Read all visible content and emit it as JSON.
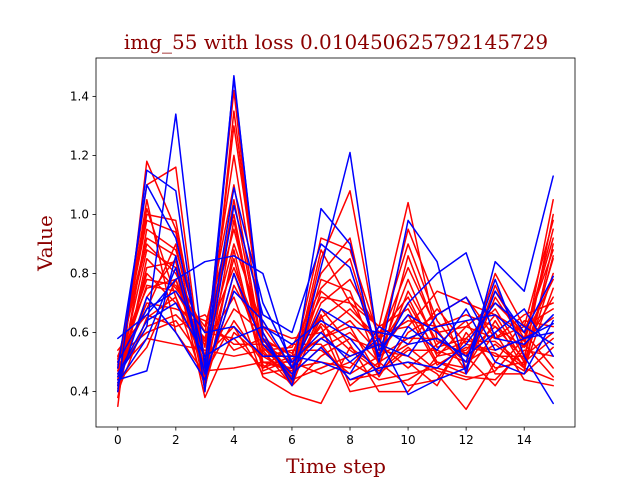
{
  "chart_data": {
    "type": "line",
    "title": "img_55 with loss 0.010450625792145729",
    "xlabel": "Time step",
    "ylabel": "Value",
    "xlim": [
      -0.75,
      15.75
    ],
    "ylim": [
      0.28,
      1.53
    ],
    "xticks": [
      0,
      2,
      4,
      6,
      8,
      10,
      12,
      14
    ],
    "xtick_labels": [
      "0",
      "2",
      "4",
      "6",
      "8",
      "10",
      "12",
      "14"
    ],
    "yticks": [
      0.4,
      0.6,
      0.8,
      1.0,
      1.2,
      1.4
    ],
    "ytick_labels": [
      "0.4",
      "0.6",
      "0.8",
      "1.0",
      "1.2",
      "1.4"
    ],
    "grid": false,
    "legend": "none",
    "x": [
      0,
      1,
      2,
      3,
      4,
      5,
      6,
      7,
      8,
      9,
      10,
      11,
      12,
      13,
      14,
      15
    ],
    "colors": {
      "red_series": "#ff0000",
      "blue_series": "#0000ff",
      "text": "#8b0000"
    },
    "series": [
      {
        "color": "red",
        "values": [
          0.35,
          1.18,
          0.95,
          0.5,
          1.42,
          0.55,
          0.45,
          0.88,
          0.7,
          0.62,
          1.04,
          0.58,
          0.5,
          0.8,
          0.62,
          0.98
        ]
      },
      {
        "color": "red",
        "values": [
          0.42,
          1.1,
          1.16,
          0.4,
          1.35,
          0.6,
          0.43,
          0.85,
          1.08,
          0.55,
          0.95,
          0.7,
          0.48,
          0.76,
          0.55,
          1.05
        ]
      },
      {
        "color": "red",
        "values": [
          0.48,
          1.0,
          0.98,
          0.45,
          1.3,
          0.62,
          0.48,
          0.92,
          0.88,
          0.58,
          0.9,
          0.64,
          0.52,
          0.74,
          0.58,
          0.92
        ]
      },
      {
        "color": "red",
        "values": [
          0.4,
          0.95,
          0.88,
          0.55,
          1.2,
          0.58,
          0.52,
          0.8,
          0.92,
          0.48,
          0.86,
          0.6,
          0.62,
          0.7,
          0.6,
          0.88
        ]
      },
      {
        "color": "red",
        "values": [
          0.5,
          0.9,
          0.8,
          0.6,
          1.1,
          0.54,
          0.55,
          0.75,
          0.85,
          0.52,
          0.78,
          0.55,
          0.58,
          0.68,
          0.52,
          0.85
        ]
      },
      {
        "color": "red",
        "values": [
          0.38,
          0.85,
          0.75,
          0.62,
          1.0,
          0.5,
          0.47,
          0.7,
          0.78,
          0.6,
          0.72,
          0.52,
          0.54,
          0.66,
          0.5,
          0.8
        ]
      },
      {
        "color": "red",
        "values": [
          0.45,
          0.8,
          0.7,
          0.58,
          0.95,
          0.56,
          0.44,
          0.65,
          0.72,
          0.62,
          0.68,
          0.5,
          0.48,
          0.64,
          0.48,
          0.75
        ]
      },
      {
        "color": "red",
        "values": [
          0.52,
          0.75,
          0.78,
          0.52,
          0.9,
          0.62,
          0.58,
          0.6,
          0.68,
          0.58,
          0.64,
          0.62,
          0.66,
          0.62,
          0.55,
          0.72
        ]
      },
      {
        "color": "red",
        "values": [
          0.44,
          0.72,
          0.85,
          0.48,
          0.85,
          0.48,
          0.52,
          0.58,
          0.62,
          0.45,
          0.6,
          0.66,
          0.72,
          0.58,
          0.62,
          0.68
        ]
      },
      {
        "color": "red",
        "values": [
          0.48,
          0.68,
          0.9,
          0.44,
          0.8,
          0.52,
          0.46,
          0.55,
          0.6,
          0.5,
          0.56,
          0.68,
          0.56,
          0.54,
          0.58,
          0.65
        ]
      },
      {
        "color": "red",
        "values": [
          0.4,
          0.65,
          0.72,
          0.42,
          0.76,
          0.58,
          0.42,
          0.52,
          0.58,
          0.54,
          0.52,
          0.46,
          0.34,
          0.5,
          0.64,
          0.62
        ]
      },
      {
        "color": "red",
        "values": [
          0.46,
          0.62,
          0.66,
          0.56,
          0.72,
          0.45,
          0.39,
          0.36,
          0.55,
          0.48,
          0.5,
          0.42,
          0.6,
          0.48,
          0.5,
          0.58
        ]
      },
      {
        "color": "red",
        "values": [
          0.52,
          0.6,
          0.64,
          0.5,
          0.68,
          0.6,
          0.44,
          0.48,
          0.52,
          0.56,
          0.48,
          0.56,
          0.64,
          0.46,
          0.46,
          0.55
        ]
      },
      {
        "color": "red",
        "values": [
          0.42,
          1.05,
          0.6,
          0.46,
          0.64,
          0.5,
          0.5,
          0.46,
          0.5,
          0.44,
          0.46,
          0.48,
          0.45,
          0.44,
          0.54,
          0.52
        ]
      },
      {
        "color": "red",
        "values": [
          0.48,
          0.98,
          0.94,
          0.52,
          0.62,
          0.46,
          0.48,
          0.5,
          0.48,
          0.6,
          0.62,
          0.74,
          0.7,
          0.66,
          0.6,
          0.48
        ]
      },
      {
        "color": "red",
        "values": [
          0.44,
          0.88,
          0.82,
          0.38,
          0.6,
          0.52,
          0.54,
          0.54,
          0.46,
          0.52,
          0.58,
          0.58,
          0.52,
          0.42,
          0.56,
          0.45
        ]
      },
      {
        "color": "red",
        "values": [
          0.5,
          0.78,
          0.76,
          0.6,
          0.58,
          0.48,
          0.56,
          0.56,
          0.44,
          0.46,
          0.54,
          0.54,
          0.5,
          0.56,
          0.48,
          0.44
        ]
      },
      {
        "color": "red",
        "values": [
          0.46,
          0.7,
          0.68,
          0.64,
          0.56,
          0.56,
          0.5,
          0.62,
          0.4,
          0.42,
          0.44,
          0.5,
          0.46,
          0.6,
          0.44,
          0.42
        ]
      },
      {
        "color": "red",
        "values": [
          0.54,
          0.66,
          0.62,
          0.66,
          0.54,
          0.58,
          0.46,
          0.66,
          0.42,
          0.5,
          0.42,
          0.44,
          0.58,
          0.52,
          0.52,
          0.6
        ]
      },
      {
        "color": "red",
        "values": [
          0.47,
          0.58,
          0.56,
          0.54,
          0.52,
          0.54,
          0.42,
          0.68,
          0.56,
          0.4,
          0.4,
          0.52,
          0.62,
          0.58,
          0.66,
          0.7
        ]
      },
      {
        "color": "red",
        "values": [
          0.43,
          0.55,
          0.78,
          0.47,
          0.48,
          0.5,
          0.48,
          0.63,
          0.54,
          0.47,
          0.55,
          0.47,
          0.44,
          0.47,
          0.58,
          0.78
        ]
      },
      {
        "color": "red",
        "values": [
          0.51,
          0.92,
          0.86,
          0.41,
          0.88,
          0.47,
          0.51,
          0.58,
          0.64,
          0.53,
          0.66,
          0.49,
          0.55,
          0.53,
          0.47,
          0.9
        ]
      },
      {
        "color": "red",
        "values": [
          0.49,
          1.02,
          0.72,
          0.49,
          1.05,
          0.53,
          0.45,
          0.74,
          0.66,
          0.57,
          0.82,
          0.61,
          0.47,
          0.72,
          0.57,
          0.95
        ]
      },
      {
        "color": "red",
        "values": [
          0.41,
          0.82,
          0.84,
          0.43,
          0.98,
          0.49,
          0.43,
          0.78,
          0.74,
          0.49,
          0.74,
          0.57,
          0.53,
          0.62,
          0.51,
          1.0
        ]
      },
      {
        "color": "red",
        "values": [
          0.47,
          0.76,
          0.74,
          0.57,
          0.82,
          0.57,
          0.53,
          0.72,
          0.7,
          0.55,
          0.7,
          0.53,
          0.57,
          0.57,
          0.49,
          0.86
        ]
      },
      {
        "color": "blue",
        "values": [
          0.4,
          1.15,
          1.08,
          0.4,
          1.47,
          0.58,
          0.44,
          1.02,
          0.9,
          0.5,
          0.98,
          0.84,
          0.46,
          0.84,
          0.74,
          1.13
        ]
      },
      {
        "color": "blue",
        "values": [
          0.45,
          0.62,
          1.34,
          0.48,
          1.46,
          0.6,
          0.42,
          0.82,
          1.21,
          0.54,
          0.66,
          0.6,
          0.5,
          0.78,
          0.52,
          0.36
        ]
      },
      {
        "color": "blue",
        "values": [
          0.58,
          0.66,
          0.78,
          0.84,
          0.86,
          0.8,
          0.48,
          0.68,
          0.62,
          0.6,
          0.58,
          0.62,
          0.64,
          0.66,
          0.58,
          0.63
        ]
      },
      {
        "color": "blue",
        "values": [
          0.48,
          1.1,
          0.92,
          0.5,
          1.09,
          0.7,
          0.5,
          0.6,
          0.5,
          0.58,
          0.39,
          0.44,
          0.48,
          0.74,
          0.6,
          0.79
        ]
      },
      {
        "color": "blue",
        "values": [
          0.44,
          0.47,
          0.86,
          0.46,
          1.03,
          0.66,
          0.6,
          0.9,
          0.82,
          0.52,
          0.7,
          0.8,
          0.87,
          0.58,
          0.56,
          0.66
        ]
      },
      {
        "color": "blue",
        "values": [
          0.42,
          0.72,
          0.6,
          0.44,
          0.8,
          0.56,
          0.46,
          0.55,
          0.44,
          0.48,
          0.5,
          0.48,
          0.56,
          0.7,
          0.62,
          0.56
        ]
      },
      {
        "color": "blue",
        "values": [
          0.5,
          0.68,
          0.74,
          0.6,
          0.62,
          0.52,
          0.52,
          0.5,
          0.46,
          0.62,
          0.56,
          0.58,
          0.52,
          0.6,
          0.68,
          0.52
        ]
      },
      {
        "color": "blue",
        "values": [
          0.46,
          0.64,
          0.7,
          0.52,
          0.58,
          0.62,
          0.56,
          0.64,
          0.58,
          0.46,
          0.62,
          0.54,
          0.68,
          0.5,
          0.46,
          0.64
        ]
      },
      {
        "color": "blue",
        "values": [
          0.43,
          0.58,
          0.82,
          0.46,
          0.74,
          0.64,
          0.48,
          0.58,
          0.52,
          0.56,
          0.52,
          0.66,
          0.72,
          0.54,
          0.58,
          0.6
        ]
      }
    ]
  }
}
